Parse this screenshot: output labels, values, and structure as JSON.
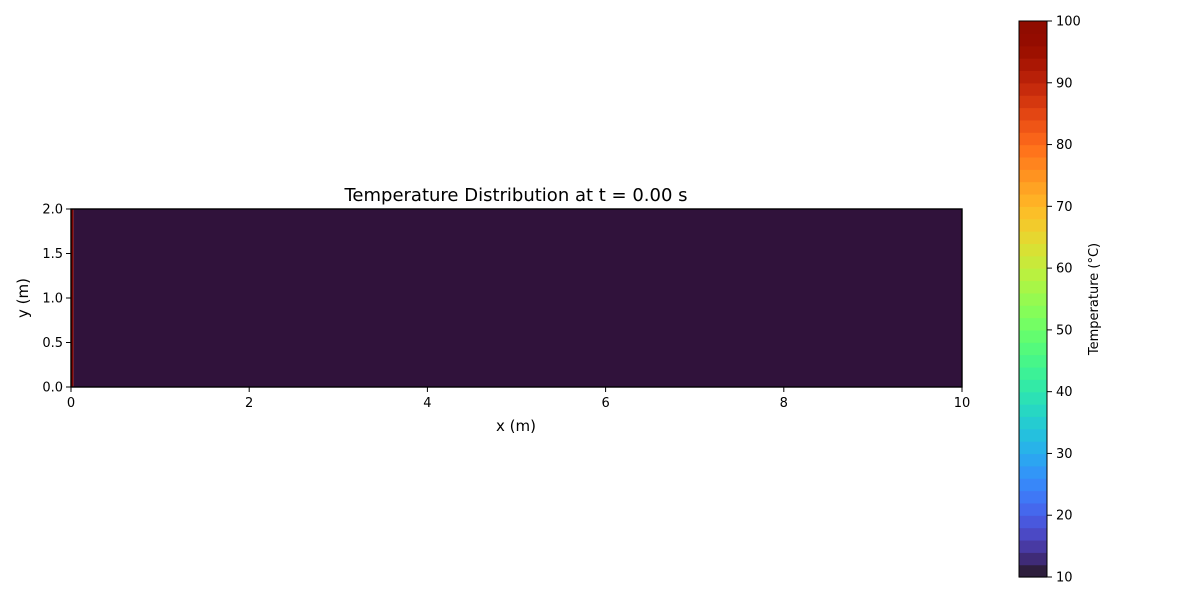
{
  "chart_data": {
    "type": "heatmap",
    "title": "Temperature Distribution at t = 0.00 s",
    "xlabel": "x (m)",
    "ylabel": "y (m)",
    "xlim": [
      0,
      10
    ],
    "ylim": [
      0,
      2
    ],
    "xticks": [
      0,
      2,
      4,
      6,
      8,
      10
    ],
    "xtick_labels": [
      "0",
      "2",
      "4",
      "6",
      "8",
      "10"
    ],
    "yticks": [
      0.0,
      0.5,
      1.0,
      1.5,
      2.0
    ],
    "ytick_labels": [
      "0.0",
      "0.5",
      "1.0",
      "1.5",
      "2.0"
    ],
    "grid": false,
    "field": [
      {
        "x_range": [
          0,
          0.03
        ],
        "y_range": [
          0,
          2
        ],
        "temperature": 100
      },
      {
        "x_range": [
          0.03,
          10
        ],
        "y_range": [
          0,
          2
        ],
        "temperature": 10
      }
    ],
    "colorbar": {
      "label": "Temperature (°C)",
      "range": [
        10,
        100
      ],
      "ticks": [
        10,
        20,
        30,
        40,
        50,
        60,
        70,
        80,
        90,
        100
      ],
      "tick_labels": [
        "10",
        "20",
        "30",
        "40",
        "50",
        "60",
        "70",
        "80",
        "90",
        "100"
      ],
      "levels": 45,
      "colormap": "turbo",
      "placement": "right"
    },
    "colors": {
      "cold": "#30123b",
      "hot": "#7a0403"
    }
  }
}
